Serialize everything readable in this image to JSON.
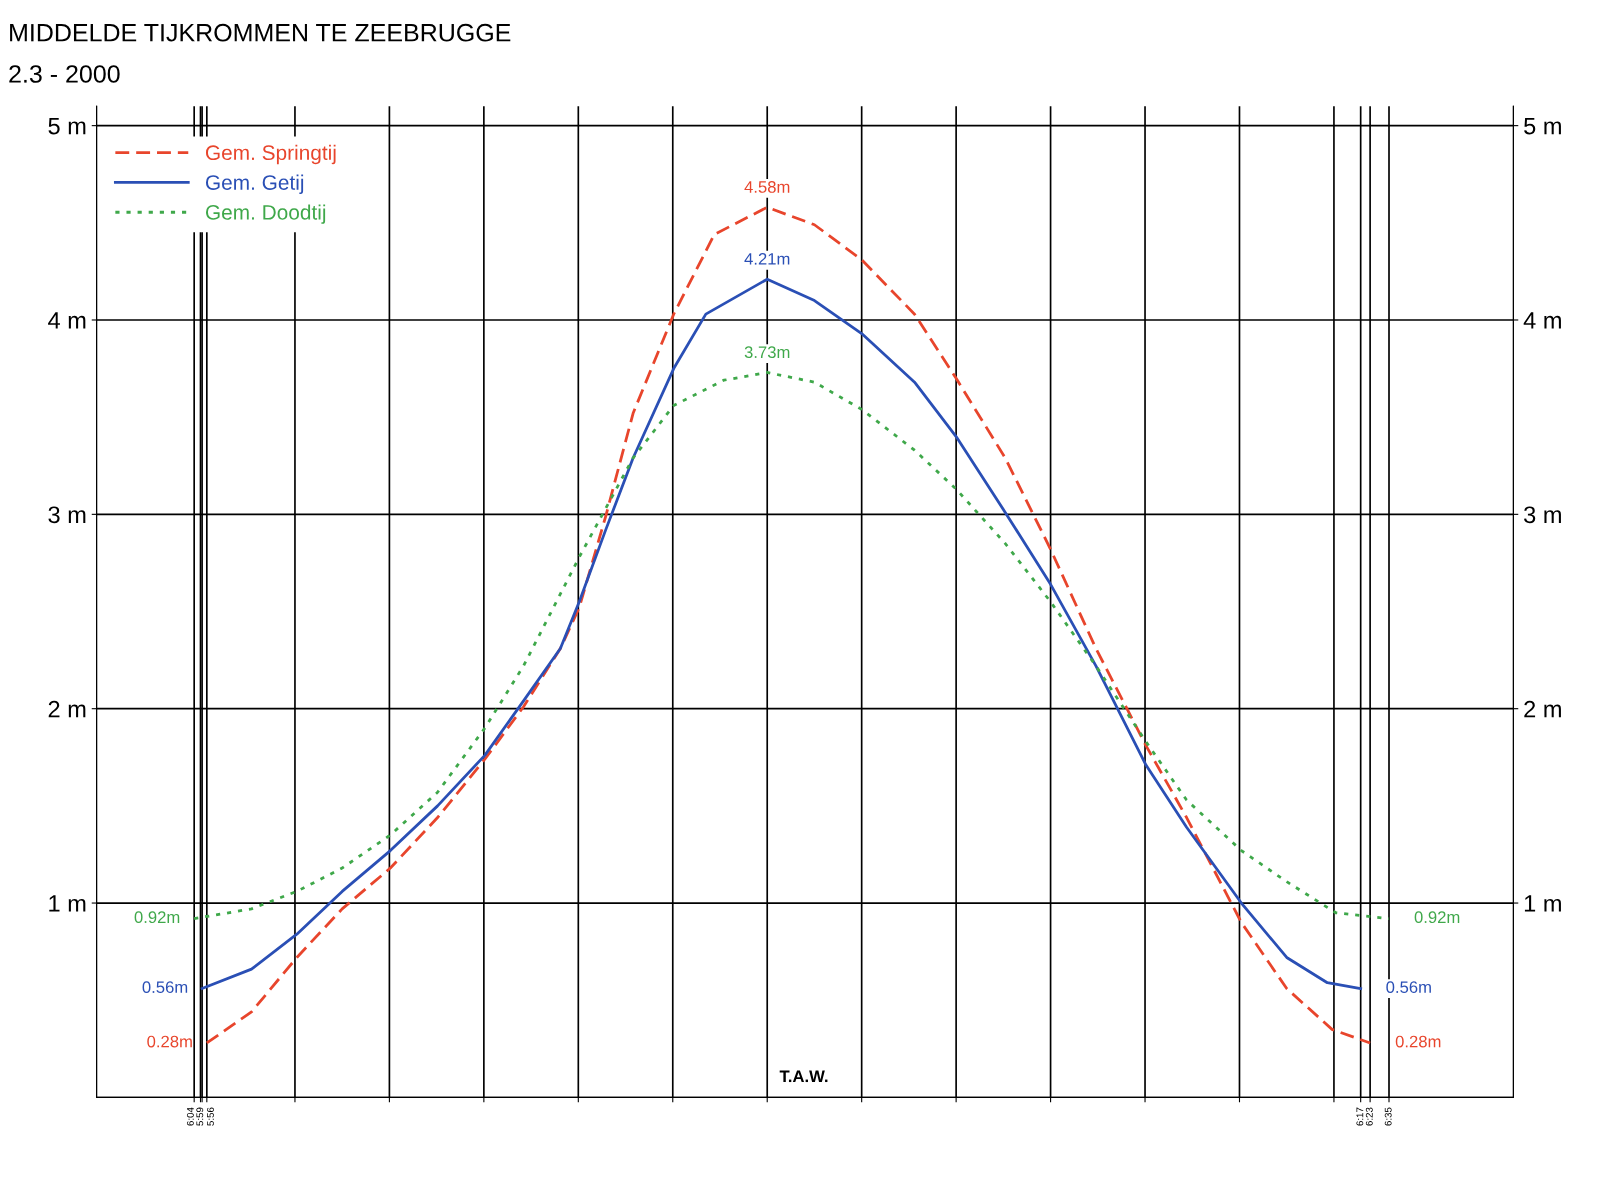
{
  "chart_data": {
    "type": "line",
    "title": "MIDDELDE TIJKROMMEN TE ZEEBRUGGE",
    "subtitle": "2.3 - 2000",
    "xlim": [
      -7.1,
      7.9
    ],
    "xticks": [
      {
        "value": -6.067,
        "label": "6:04"
      },
      {
        "value": -5.983,
        "label": "5:59"
      },
      {
        "value": -5.933,
        "label": "5:56"
      },
      {
        "value": 6.283,
        "label": "6:17"
      },
      {
        "value": 6.383,
        "label": "6:23"
      },
      {
        "value": 6.583,
        "label": "6:35"
      },
      {
        "value": -6,
        "label": null
      },
      {
        "value": -5,
        "label": null
      },
      {
        "value": -4,
        "label": null
      },
      {
        "value": -3,
        "label": null
      },
      {
        "value": -2,
        "label": null
      },
      {
        "value": -1,
        "label": null
      },
      {
        "value": 0,
        "label": null
      },
      {
        "value": 1,
        "label": null
      },
      {
        "value": 2,
        "label": null
      },
      {
        "value": 3,
        "label": null
      },
      {
        "value": 4,
        "label": null
      },
      {
        "value": 5,
        "label": null
      },
      {
        "value": 6,
        "label": null
      }
    ],
    "ylim": [
      0,
      5.1
    ],
    "yticks": [
      {
        "value": 1,
        "label": "1 m"
      },
      {
        "value": 2,
        "label": "2 m"
      },
      {
        "value": 3,
        "label": "3 m"
      },
      {
        "value": 4,
        "label": "4 m"
      },
      {
        "value": 5,
        "label": "5 m"
      }
    ],
    "y2lim": [
      0,
      5.1
    ],
    "y2ticks": [
      {
        "value": 1,
        "label": "1 m"
      },
      {
        "value": 2,
        "label": "2 m"
      },
      {
        "value": 3,
        "label": "3 m"
      },
      {
        "value": 4,
        "label": "4 m"
      },
      {
        "value": 5,
        "label": "5 m"
      }
    ],
    "grid": true,
    "legend": "top left",
    "series": [
      {
        "name": "Gem. Springtij",
        "color": "#e8452c",
        "line_style": "dashed",
        "x": [
          -5.933,
          -5.46,
          -4.98,
          -4.5,
          -3.99,
          -3.49,
          -2.99,
          -2.58,
          -2.19,
          -1.99,
          -1.71,
          -1.42,
          -0.99,
          -0.56,
          0,
          0.5,
          1.0,
          1.56,
          2.0,
          2.52,
          3.0,
          3.48,
          4.01,
          4.44,
          5.02,
          5.5,
          5.98,
          6.383
        ],
        "values": [
          0.28,
          0.44,
          0.72,
          0.97,
          1.18,
          1.44,
          1.74,
          2.01,
          2.31,
          2.52,
          2.99,
          3.52,
          4.03,
          4.44,
          4.58,
          4.49,
          4.31,
          4.03,
          3.7,
          3.29,
          2.82,
          2.31,
          1.81,
          1.44,
          0.9,
          0.56,
          0.35,
          0.28
        ],
        "value_labels": [
          "0.28m",
          null,
          null,
          null,
          null,
          null,
          null,
          null,
          null,
          null,
          null,
          null,
          null,
          null,
          "4.58m",
          null,
          null,
          null,
          null,
          null,
          null,
          null,
          null,
          null,
          null,
          null,
          null,
          "0.28m"
        ]
      },
      {
        "name": "Gem. Getij",
        "color": "#2a4fb5",
        "line_style": "solid",
        "x": [
          -5.983,
          -5.46,
          -4.98,
          -4.5,
          -3.99,
          -3.49,
          -2.99,
          -2.58,
          -2.19,
          -1.99,
          -1.71,
          -1.42,
          -0.99,
          -0.65,
          0,
          0.5,
          1.0,
          1.56,
          2.0,
          2.52,
          3.0,
          3.48,
          4.01,
          4.44,
          5.02,
          5.5,
          5.93,
          6.283
        ],
        "values": [
          0.56,
          0.66,
          0.84,
          1.06,
          1.27,
          1.5,
          1.76,
          2.04,
          2.31,
          2.55,
          2.92,
          3.29,
          3.75,
          4.03,
          4.21,
          4.1,
          3.93,
          3.68,
          3.4,
          3.01,
          2.64,
          2.22,
          1.71,
          1.39,
          1.0,
          0.72,
          0.59,
          0.56
        ],
        "value_labels": [
          "0.56m",
          null,
          null,
          null,
          null,
          null,
          null,
          null,
          null,
          null,
          null,
          null,
          null,
          null,
          "4.21m",
          null,
          null,
          null,
          null,
          null,
          null,
          null,
          null,
          null,
          null,
          null,
          null,
          "0.56m"
        ]
      },
      {
        "name": "Gem. Doodtij",
        "color": "#3fa84a",
        "line_style": "dotted",
        "x": [
          -6.067,
          -5.46,
          -4.98,
          -4.5,
          -3.99,
          -3.49,
          -2.99,
          -2.58,
          -1.99,
          -1.42,
          -0.99,
          -0.46,
          0,
          0.5,
          1.0,
          1.56,
          2.0,
          2.52,
          3.0,
          3.48,
          4.01,
          4.44,
          5.02,
          5.5,
          6.02,
          6.583
        ],
        "values": [
          0.92,
          0.97,
          1.06,
          1.18,
          1.35,
          1.57,
          1.9,
          2.22,
          2.78,
          3.29,
          3.56,
          3.69,
          3.73,
          3.68,
          3.54,
          3.33,
          3.13,
          2.85,
          2.55,
          2.22,
          1.83,
          1.53,
          1.27,
          1.11,
          0.95,
          0.92
        ],
        "value_labels": [
          "0.92m",
          null,
          null,
          null,
          null,
          null,
          null,
          null,
          null,
          null,
          null,
          null,
          "3.73m",
          null,
          null,
          null,
          null,
          null,
          null,
          null,
          null,
          null,
          null,
          null,
          null,
          "0.92m"
        ]
      }
    ],
    "annotations": [
      "T.A.W."
    ]
  }
}
